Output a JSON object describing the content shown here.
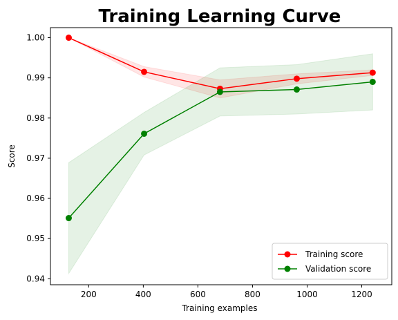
{
  "chart_data": {
    "type": "line",
    "title": "Training Learning Curve",
    "xlabel": "Training examples",
    "ylabel": "Score",
    "xlim": [
      60,
      1310
    ],
    "ylim": [
      0.9385,
      1.0025
    ],
    "xticks": [
      200,
      400,
      600,
      800,
      1000,
      1200
    ],
    "yticks": [
      0.94,
      0.95,
      0.96,
      0.97,
      0.98,
      0.99,
      1.0
    ],
    "ytick_labels": [
      "0.94",
      "0.95",
      "0.96",
      "0.97",
      "0.98",
      "0.99",
      "1.00"
    ],
    "x": [
      127,
      403,
      681,
      962,
      1240
    ],
    "grid": false,
    "legend_position": "lower-right",
    "series": [
      {
        "name": "Training score",
        "color": "#ff0000",
        "fill_color": "#ff0000",
        "values": [
          1.0,
          0.9915,
          0.9873,
          0.9898,
          0.9913
        ],
        "lower": [
          1.0,
          0.9902,
          0.985,
          0.9885,
          0.9906
        ],
        "upper": [
          1.0,
          0.9928,
          0.9895,
          0.991,
          0.992
        ]
      },
      {
        "name": "Validation score",
        "color": "#008000",
        "fill_color": "#008000",
        "values": [
          0.9551,
          0.9761,
          0.9865,
          0.9871,
          0.989
        ],
        "lower": [
          0.9413,
          0.9708,
          0.9805,
          0.981,
          0.982
        ],
        "upper": [
          0.9689,
          0.9814,
          0.9925,
          0.9933,
          0.996
        ]
      }
    ]
  }
}
